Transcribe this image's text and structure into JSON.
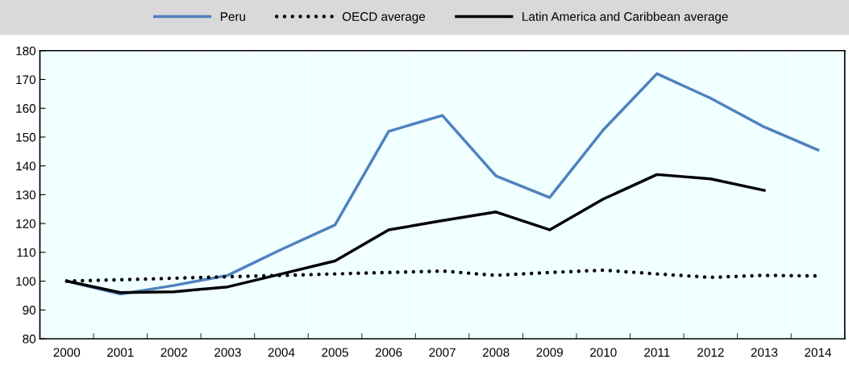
{
  "chart_data": {
    "type": "line",
    "categories": [
      "2000",
      "2001",
      "2002",
      "2003",
      "2004",
      "2005",
      "2006",
      "2007",
      "2008",
      "2009",
      "2010",
      "2011",
      "2012",
      "2013",
      "2014"
    ],
    "series": [
      {
        "name": "Peru",
        "color": "#4f81bd",
        "line_style": "solid",
        "values": [
          100,
          95.5,
          98.5,
          102,
          111,
          119.5,
          152,
          157.5,
          136.5,
          129,
          152.5,
          172,
          163.5,
          153.5,
          145.5
        ]
      },
      {
        "name": "OECD average",
        "color": "#000000",
        "line_style": "dotted",
        "values": [
          100,
          100.5,
          101,
          101.5,
          102,
          102.5,
          103,
          103.5,
          102,
          103,
          103.8,
          102.5,
          101.3,
          102,
          101.8
        ]
      },
      {
        "name": "Latin America and Caribbean average",
        "color": "#000000",
        "line_style": "solid",
        "values": [
          100,
          96,
          96.3,
          98,
          102.5,
          107,
          117.8,
          121,
          124,
          117.8,
          128.5,
          137,
          135.5,
          131.5,
          null
        ]
      }
    ],
    "ylim": [
      80,
      180
    ],
    "yticks": [
      80,
      90,
      100,
      110,
      120,
      130,
      140,
      150,
      160,
      170,
      180
    ],
    "grid": "x",
    "legend": "top",
    "marker": "none"
  }
}
